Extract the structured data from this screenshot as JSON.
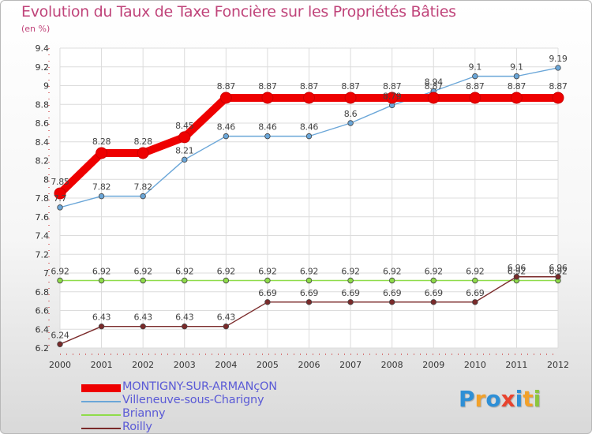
{
  "chart_data": {
    "type": "line",
    "title": "Evolution du Taux de Taxe Foncière sur les Propriétés Bâties",
    "subtitle": "(en %)",
    "x": [
      "2000",
      "2001",
      "2002",
      "2003",
      "2004",
      "2005",
      "2006",
      "2007",
      "2008",
      "2009",
      "2010",
      "2011",
      "2012"
    ],
    "ylim": [
      6.2,
      9.4
    ],
    "yticks": [
      "6.2",
      "6.4",
      "6.6",
      "6.8",
      "7",
      "7.2",
      "7.4",
      "7.6",
      "7.8",
      "8",
      "8.2",
      "8.4",
      "8.6",
      "8.8",
      "9",
      "9.2",
      "9.4"
    ],
    "grid": true,
    "legend_position": "bottom-left",
    "series": [
      {
        "name": "MONTIGNY-SUR-ARMANçON",
        "color": "#ee0000",
        "values": [
          7.85,
          8.28,
          8.28,
          8.45,
          8.87,
          8.87,
          8.87,
          8.87,
          8.87,
          8.87,
          8.87,
          8.87,
          8.87
        ],
        "labels": [
          "7.85",
          "8.28",
          "8.28",
          "8.45",
          "8.87",
          "8.87",
          "8.87",
          "8.87",
          "8.87",
          "8.87",
          "8.87",
          "8.87",
          "8.87"
        ]
      },
      {
        "name": "Villeneuve-sous-Charigny",
        "color": "#6aa6d8",
        "values": [
          7.7,
          7.82,
          7.82,
          8.21,
          8.46,
          8.46,
          8.46,
          8.6,
          8.79,
          8.94,
          9.1,
          9.1,
          9.19
        ],
        "labels": [
          "7.7",
          "7.82",
          "7.82",
          "8.21",
          "8.46",
          "8.46",
          "8.46",
          "8.6",
          "8.79",
          "8.94",
          "9.1",
          "9.1",
          "9.19"
        ]
      },
      {
        "name": "Brianny",
        "color": "#8fdc4a",
        "values": [
          6.92,
          6.92,
          6.92,
          6.92,
          6.92,
          6.92,
          6.92,
          6.92,
          6.92,
          6.92,
          6.92,
          6.92,
          6.92
        ],
        "labels": [
          "6.92",
          "6.92",
          "6.92",
          "6.92",
          "6.92",
          "6.92",
          "6.92",
          "6.92",
          "6.92",
          "6.92",
          "6.92",
          "6.92",
          "6.92"
        ]
      },
      {
        "name": "Roilly",
        "color": "#7a2a2a",
        "values": [
          6.24,
          6.43,
          6.43,
          6.43,
          6.43,
          6.69,
          6.69,
          6.69,
          6.69,
          6.69,
          6.69,
          6.96,
          6.96
        ],
        "labels": [
          "6.24",
          "6.43",
          "6.43",
          "6.43",
          "6.43",
          "6.69",
          "6.69",
          "6.69",
          "6.69",
          "6.69",
          "6.69",
          "6.96",
          "6.96"
        ]
      }
    ]
  },
  "logo": {
    "letters": [
      "P",
      "r",
      "o",
      "x",
      "i",
      "t",
      "i"
    ],
    "colors": [
      "#2e8fd6",
      "#f2a12a",
      "#2e8fd6",
      "#e8432e",
      "#2e8fd6",
      "#f2a12a",
      "#8cc63f"
    ]
  }
}
